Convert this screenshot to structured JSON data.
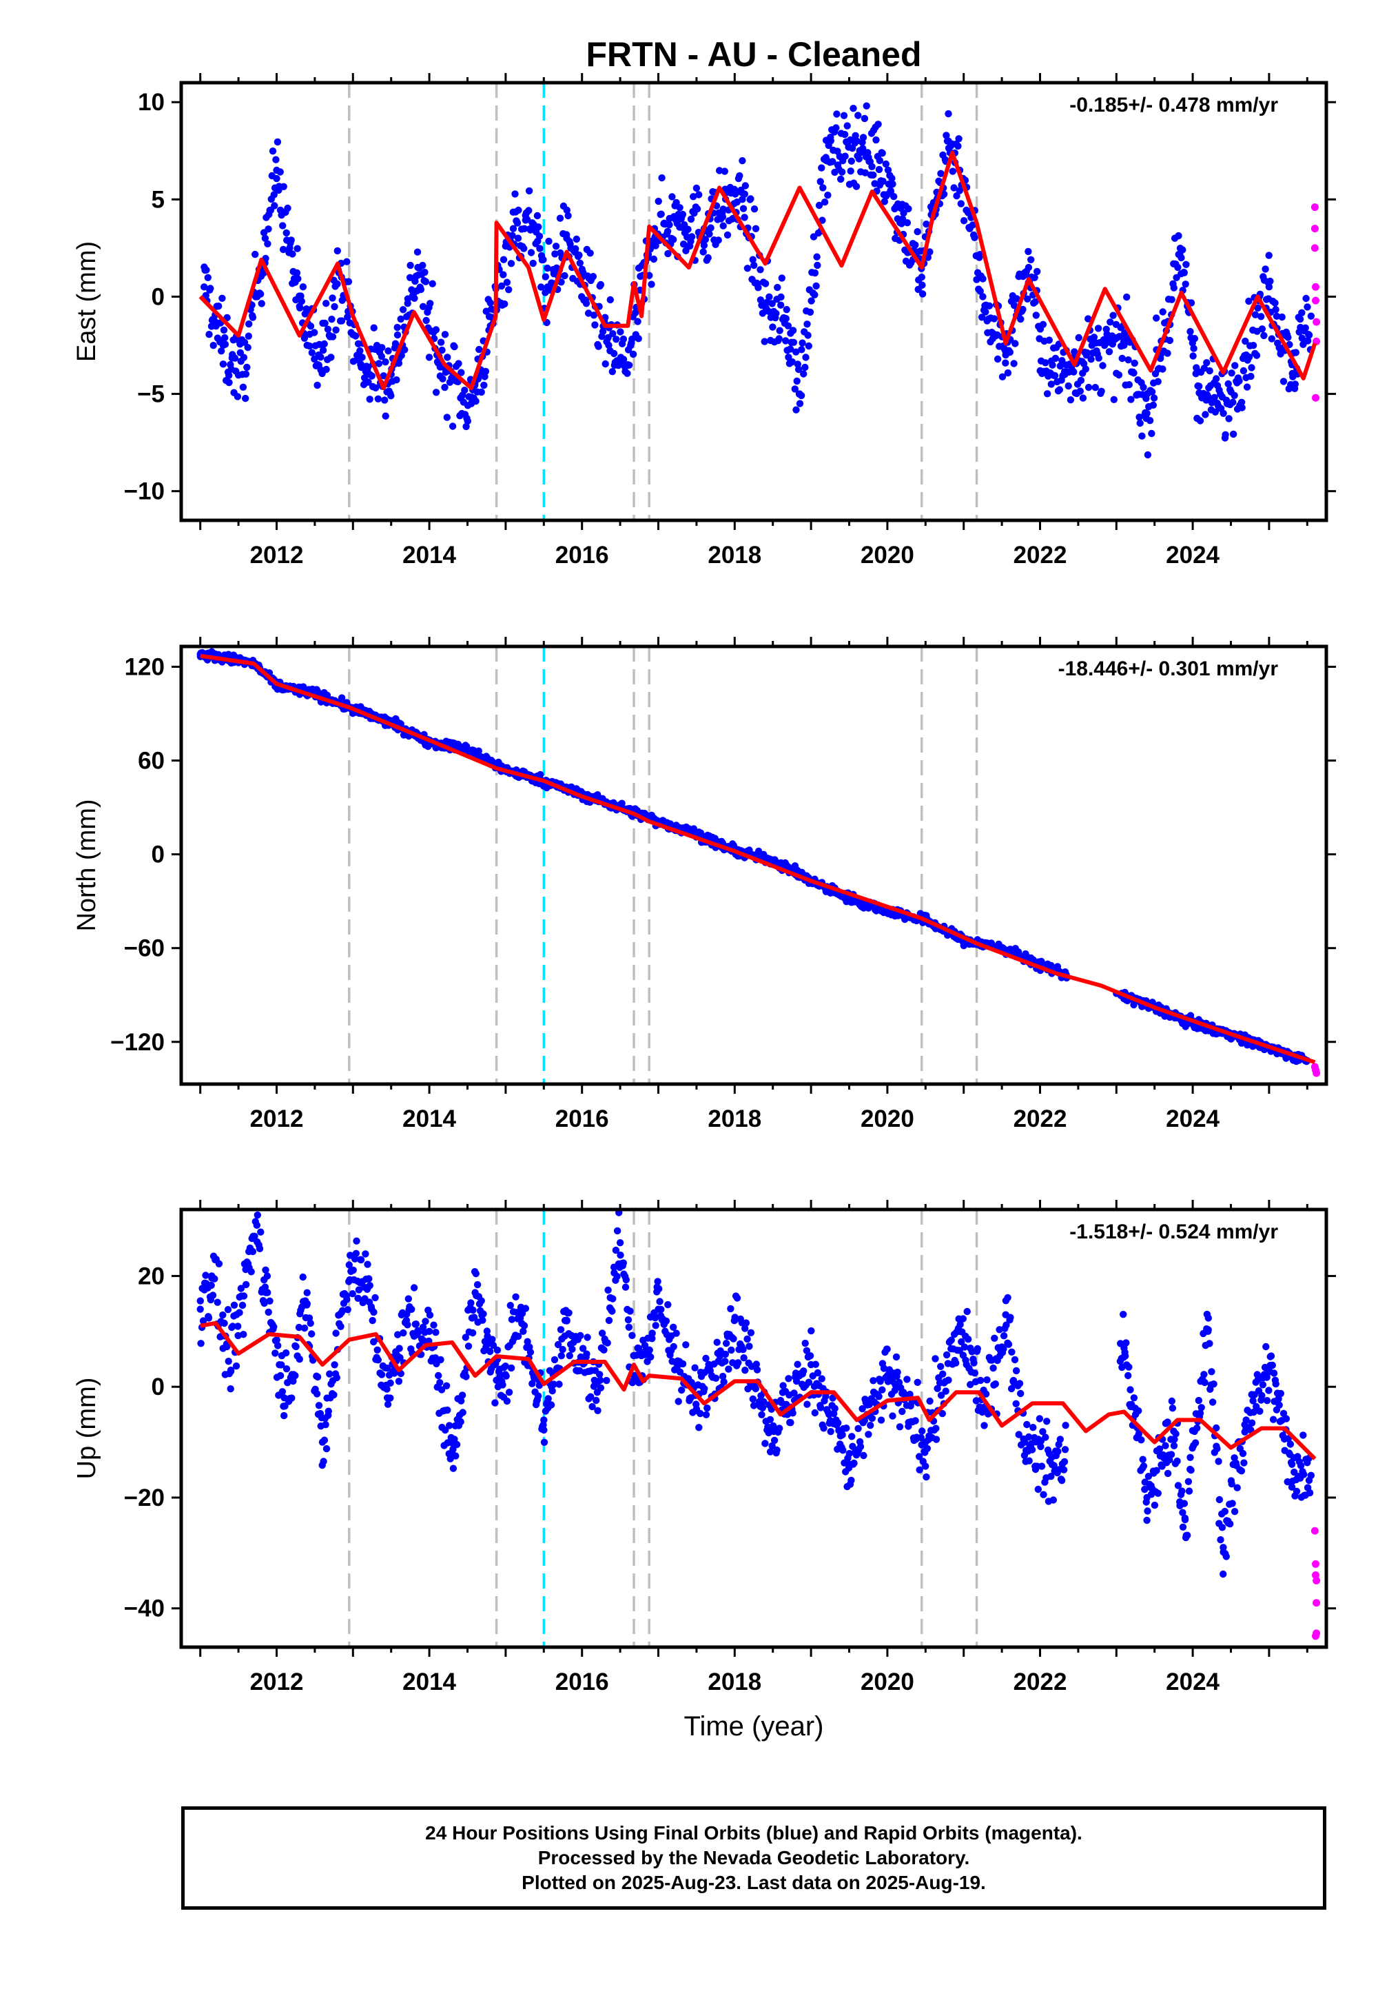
{
  "title": "FRTN  - AU - Cleaned",
  "colors": {
    "final": "#0000ff",
    "rapid": "#ff00ff",
    "model": "#ff0000",
    "event_gray": "#bfbfbf",
    "event_cyan": "#00e5ff"
  },
  "footer": {
    "line1": "24 Hour Positions Using Final Orbits (blue) and Rapid Orbits (magenta).",
    "line2": "Processed by the Nevada Geodetic Laboratory.",
    "line3": "Plotted on 2025-Aug-23. Last data on 2025-Aug-19."
  },
  "chart_data": [
    {
      "type": "scatter",
      "ylabel": "East (mm)",
      "rate_label": "-0.185+/- 0.478 mm/yr",
      "xlim": [
        2010.75,
        2025.75
      ],
      "ylim": [
        -11.5,
        11.0
      ],
      "yticks": [
        -10,
        -5,
        0,
        5,
        10
      ],
      "xticks": [
        2012,
        2014,
        2016,
        2018,
        2020,
        2022,
        2024
      ],
      "events_gray": [
        2012.95,
        2014.88,
        2016.68,
        2016.88,
        2020.45,
        2021.17
      ],
      "events_cyan": [
        2015.5
      ],
      "model_trend": [
        [
          2011.0,
          0.0
        ],
        [
          2011.5,
          -2.0
        ],
        [
          2011.8,
          1.9
        ],
        [
          2012.3,
          -2.0
        ],
        [
          2012.8,
          1.7
        ],
        [
          2013.0,
          -1.0
        ],
        [
          2013.4,
          -4.7
        ],
        [
          2013.8,
          -0.8
        ],
        [
          2014.2,
          -3.5
        ],
        [
          2014.55,
          -4.7
        ],
        [
          2014.87,
          -1.0
        ],
        [
          2014.88,
          3.8
        ],
        [
          2015.3,
          1.5
        ],
        [
          2015.5,
          -1.2
        ],
        [
          2015.8,
          2.3
        ],
        [
          2016.3,
          -1.5
        ],
        [
          2016.6,
          -1.5
        ],
        [
          2016.68,
          0.7
        ],
        [
          2016.78,
          -1.0
        ],
        [
          2016.88,
          3.6
        ],
        [
          2017.4,
          1.5
        ],
        [
          2017.8,
          5.6
        ],
        [
          2018.4,
          1.7
        ],
        [
          2018.85,
          5.6
        ],
        [
          2019.4,
          1.6
        ],
        [
          2019.8,
          5.4
        ],
        [
          2020.45,
          1.5
        ],
        [
          2020.6,
          4.2
        ],
        [
          2020.85,
          7.4
        ],
        [
          2021.17,
          3.8
        ],
        [
          2021.55,
          -2.4
        ],
        [
          2021.85,
          0.9
        ],
        [
          2022.45,
          -3.5
        ],
        [
          2022.85,
          0.4
        ],
        [
          2023.45,
          -3.8
        ],
        [
          2023.85,
          0.2
        ],
        [
          2024.4,
          -3.9
        ],
        [
          2024.85,
          0.0
        ],
        [
          2025.45,
          -4.2
        ],
        [
          2025.6,
          -2.4
        ]
      ],
      "final_series": [
        [
          2011.05,
          0.5
        ],
        [
          2011.3,
          -2.5
        ],
        [
          2011.55,
          -4.0
        ],
        [
          2011.85,
          3.0
        ],
        [
          2012.0,
          6.5
        ],
        [
          2012.3,
          -0.5
        ],
        [
          2012.55,
          -3.0
        ],
        [
          2012.85,
          1.0
        ],
        [
          2013.1,
          -3.5
        ],
        [
          2013.5,
          -4.0
        ],
        [
          2013.85,
          1.5
        ],
        [
          2014.1,
          -3.0
        ],
        [
          2014.55,
          -5.5
        ],
        [
          2014.8,
          -1.5
        ],
        [
          2015.1,
          3.5
        ],
        [
          2015.35,
          3.5
        ],
        [
          2015.55,
          0.5
        ],
        [
          2015.8,
          3.0
        ],
        [
          2016.0,
          1.0
        ],
        [
          2016.35,
          -2.5
        ],
        [
          2016.6,
          -3.5
        ],
        [
          2016.95,
          3.5
        ],
        [
          2017.3,
          4.0
        ],
        [
          2017.6,
          3.5
        ],
        [
          2017.85,
          4.5
        ],
        [
          2018.1,
          5.0
        ],
        [
          2018.4,
          -0.5
        ],
        [
          2018.7,
          -1.5
        ],
        [
          2018.85,
          -5.0
        ],
        [
          2019.2,
          7.0
        ],
        [
          2019.6,
          8.0
        ],
        [
          2019.9,
          7.0
        ],
        [
          2020.2,
          4.0
        ],
        [
          2020.45,
          1.0
        ],
        [
          2020.65,
          5.0
        ],
        [
          2020.8,
          8.0
        ],
        [
          2021.0,
          6.0
        ],
        [
          2021.25,
          0.0
        ],
        [
          2021.55,
          -3.0
        ],
        [
          2021.85,
          1.5
        ],
        [
          2022.1,
          -4.0
        ],
        [
          2023.1,
          -2.5
        ],
        [
          2023.4,
          -6.0
        ],
        [
          2023.85,
          2.0
        ],
        [
          2024.1,
          -5.0
        ],
        [
          2024.45,
          -5.5
        ],
        [
          2024.7,
          -3.0
        ],
        [
          2025.0,
          0.5
        ],
        [
          2025.3,
          -3.5
        ],
        [
          2025.55,
          -1.0
        ]
      ],
      "rapid_series": [
        [
          2025.6,
          4.6
        ],
        [
          2025.6,
          3.5
        ],
        [
          2025.6,
          2.5
        ],
        [
          2025.61,
          0.5
        ],
        [
          2025.61,
          -0.2
        ],
        [
          2025.62,
          -1.3
        ],
        [
          2025.62,
          -2.3
        ],
        [
          2025.61,
          -5.2
        ]
      ]
    },
    {
      "type": "scatter",
      "ylabel": "North (mm)",
      "rate_label": "-18.446+/- 0.301 mm/yr",
      "xlim": [
        2010.75,
        2025.75
      ],
      "ylim": [
        -147,
        133
      ],
      "yticks": [
        -120,
        -60,
        0,
        60,
        120
      ],
      "xticks": [
        2012,
        2014,
        2016,
        2018,
        2020,
        2022,
        2024
      ],
      "events_gray": [
        2012.95,
        2014.88,
        2016.68,
        2016.88,
        2020.45,
        2021.17
      ],
      "events_cyan": [
        2015.5
      ],
      "model_trend": [
        [
          2011.0,
          127
        ],
        [
          2011.7,
          122
        ],
        [
          2012.0,
          109
        ],
        [
          2012.95,
          94
        ],
        [
          2014.0,
          73
        ],
        [
          2014.88,
          55
        ],
        [
          2015.5,
          47
        ],
        [
          2016.0,
          37
        ],
        [
          2016.68,
          26
        ],
        [
          2016.88,
          21
        ],
        [
          2018.0,
          2
        ],
        [
          2019.0,
          -17
        ],
        [
          2020.45,
          -41
        ],
        [
          2021.17,
          -57
        ],
        [
          2022.2,
          -76
        ],
        [
          2022.8,
          -84
        ],
        [
          2023.5,
          -98
        ],
        [
          2024.5,
          -115
        ],
        [
          2025.6,
          -133
        ]
      ],
      "final_series": [
        [
          2011.0,
          128
        ],
        [
          2011.5,
          124
        ],
        [
          2011.7,
          122
        ],
        [
          2012.0,
          108
        ],
        [
          2012.5,
          103
        ],
        [
          2013.0,
          93
        ],
        [
          2013.5,
          84
        ],
        [
          2014.0,
          72
        ],
        [
          2014.5,
          67
        ],
        [
          2015.0,
          54
        ],
        [
          2015.5,
          47
        ],
        [
          2016.0,
          38
        ],
        [
          2016.5,
          30
        ],
        [
          2017.0,
          21
        ],
        [
          2017.5,
          13
        ],
        [
          2018.0,
          2
        ],
        [
          2018.5,
          -4
        ],
        [
          2019.0,
          -17
        ],
        [
          2019.5,
          -28
        ],
        [
          2020.0,
          -36
        ],
        [
          2020.5,
          -42
        ],
        [
          2021.0,
          -55
        ],
        [
          2021.5,
          -60
        ],
        [
          2022.0,
          -71
        ],
        [
          2022.3,
          -76
        ],
        [
          2023.0,
          -89
        ],
        [
          2023.5,
          -98
        ],
        [
          2024.0,
          -108
        ],
        [
          2024.5,
          -115
        ],
        [
          2025.0,
          -124
        ],
        [
          2025.5,
          -132
        ]
      ],
      "rapid_series": [
        [
          2025.6,
          -136
        ],
        [
          2025.61,
          -138
        ],
        [
          2025.62,
          -140
        ]
      ]
    },
    {
      "type": "scatter",
      "ylabel": "Up (mm)",
      "xlabel": "Time (year)",
      "rate_label": "-1.518+/- 0.524 mm/yr",
      "xlim": [
        2010.75,
        2025.75
      ],
      "ylim": [
        -47,
        32
      ],
      "yticks": [
        -40,
        -20,
        0,
        20
      ],
      "xticks": [
        2012,
        2014,
        2016,
        2018,
        2020,
        2022,
        2024
      ],
      "events_gray": [
        2012.95,
        2014.88,
        2016.68,
        2016.88,
        2020.45,
        2021.17
      ],
      "events_cyan": [
        2015.5
      ],
      "model_trend": [
        [
          2011.0,
          11
        ],
        [
          2011.2,
          11.5
        ],
        [
          2011.5,
          6
        ],
        [
          2011.9,
          9.5
        ],
        [
          2012.3,
          9
        ],
        [
          2012.6,
          4
        ],
        [
          2012.95,
          8.5
        ],
        [
          2013.3,
          9.5
        ],
        [
          2013.6,
          3
        ],
        [
          2013.95,
          7.5
        ],
        [
          2014.3,
          8
        ],
        [
          2014.6,
          2
        ],
        [
          2014.88,
          5.5
        ],
        [
          2015.3,
          5
        ],
        [
          2015.5,
          0.5
        ],
        [
          2015.9,
          4.5
        ],
        [
          2016.3,
          4.5
        ],
        [
          2016.55,
          -0.5
        ],
        [
          2016.68,
          4
        ],
        [
          2016.8,
          1
        ],
        [
          2016.88,
          2
        ],
        [
          2017.3,
          1.5
        ],
        [
          2017.6,
          -3
        ],
        [
          2018.0,
          1
        ],
        [
          2018.3,
          1
        ],
        [
          2018.6,
          -5
        ],
        [
          2019.0,
          -1
        ],
        [
          2019.3,
          -1
        ],
        [
          2019.6,
          -6
        ],
        [
          2020.0,
          -2.5
        ],
        [
          2020.4,
          -2
        ],
        [
          2020.55,
          -6
        ],
        [
          2020.9,
          -1
        ],
        [
          2021.2,
          -1
        ],
        [
          2021.5,
          -7
        ],
        [
          2021.9,
          -3
        ],
        [
          2022.3,
          -3
        ],
        [
          2022.6,
          -8
        ],
        [
          2022.9,
          -5
        ],
        [
          2023.1,
          -4.5
        ],
        [
          2023.5,
          -10
        ],
        [
          2023.8,
          -6
        ],
        [
          2024.1,
          -6
        ],
        [
          2024.5,
          -11
        ],
        [
          2024.9,
          -7.5
        ],
        [
          2025.2,
          -7.5
        ],
        [
          2025.6,
          -13
        ]
      ],
      "final_series": [
        [
          2011.0,
          14
        ],
        [
          2011.15,
          20
        ],
        [
          2011.4,
          3
        ],
        [
          2011.75,
          31
        ],
        [
          2011.85,
          18
        ],
        [
          2012.1,
          -2
        ],
        [
          2012.4,
          15
        ],
        [
          2012.6,
          -10
        ],
        [
          2012.95,
          22
        ],
        [
          2013.2,
          18
        ],
        [
          2013.45,
          -2
        ],
        [
          2013.7,
          12
        ],
        [
          2014.0,
          10
        ],
        [
          2014.3,
          -12
        ],
        [
          2014.6,
          17
        ],
        [
          2014.9,
          0
        ],
        [
          2015.2,
          14
        ],
        [
          2015.5,
          -6
        ],
        [
          2015.8,
          12
        ],
        [
          2016.2,
          -1
        ],
        [
          2016.5,
          26
        ],
        [
          2016.7,
          2
        ],
        [
          2017.0,
          14
        ],
        [
          2017.5,
          -4
        ],
        [
          2018.0,
          12
        ],
        [
          2018.5,
          -8
        ],
        [
          2019.0,
          4
        ],
        [
          2019.5,
          -14
        ],
        [
          2020.0,
          2
        ],
        [
          2020.5,
          -10
        ],
        [
          2020.95,
          10
        ],
        [
          2021.3,
          -4
        ],
        [
          2021.55,
          13
        ],
        [
          2021.8,
          -10
        ],
        [
          2022.2,
          -15
        ],
        [
          2023.1,
          7
        ],
        [
          2023.4,
          -20
        ],
        [
          2023.75,
          -8
        ],
        [
          2023.9,
          -24
        ],
        [
          2024.2,
          10
        ],
        [
          2024.4,
          -29
        ],
        [
          2024.7,
          -6
        ],
        [
          2025.0,
          3
        ],
        [
          2025.3,
          -14
        ],
        [
          2025.55,
          -16
        ]
      ],
      "rapid_series": [
        [
          2025.6,
          -26
        ],
        [
          2025.61,
          -32
        ],
        [
          2025.61,
          -34
        ],
        [
          2025.62,
          -35
        ],
        [
          2025.62,
          -39
        ],
        [
          2025.61,
          -45
        ],
        [
          2025.62,
          -44.5
        ]
      ]
    }
  ]
}
